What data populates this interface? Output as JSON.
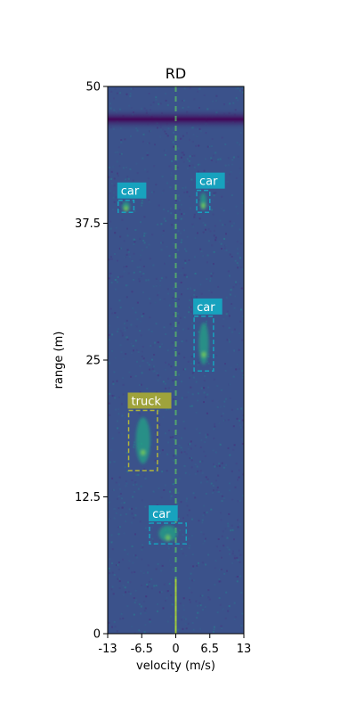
{
  "chart_data": {
    "type": "heatmap",
    "title": "RD",
    "xlabel": "velocity (m/s)",
    "ylabel": "range (m)",
    "xlim": [
      -13,
      13
    ],
    "ylim": [
      0,
      50
    ],
    "xticks": [
      "-13",
      "-6.5",
      "0",
      "6.5",
      "13"
    ],
    "xtick_values": [
      -13,
      -6.5,
      0,
      6.5,
      13
    ],
    "yticks": [
      "0",
      "12.5",
      "25",
      "37.5",
      "50"
    ],
    "ytick_values": [
      0,
      12.5,
      25,
      37.5,
      50
    ],
    "colormap": "viridis",
    "background_color": "#3b528b",
    "dark_band_range": 47.0,
    "zero_velocity_line_color": "#5ec962",
    "detections": [
      {
        "label": "car",
        "v_min": -11.0,
        "v_max": -8.0,
        "r_min": 38.5,
        "r_max": 39.6,
        "color": "#17a2be",
        "label_color": "#17a2be"
      },
      {
        "label": "car",
        "v_min": 4.0,
        "v_max": 6.5,
        "r_min": 38.5,
        "r_max": 40.5,
        "color": "#17a2be",
        "label_color": "#17a2be"
      },
      {
        "label": "car",
        "v_min": 3.5,
        "v_max": 7.2,
        "r_min": 24.0,
        "r_max": 29.0,
        "color": "#17a2be",
        "label_color": "#17a2be"
      },
      {
        "label": "truck",
        "v_min": -9.0,
        "v_max": -3.5,
        "r_min": 14.9,
        "r_max": 20.4,
        "color": "#b2b63a",
        "label_color": "#9fa33b"
      },
      {
        "label": "car",
        "v_min": -5.0,
        "v_max": 2.0,
        "r_min": 8.2,
        "r_max": 10.1,
        "color": "#17a2be",
        "label_color": "#17a2be"
      }
    ]
  }
}
